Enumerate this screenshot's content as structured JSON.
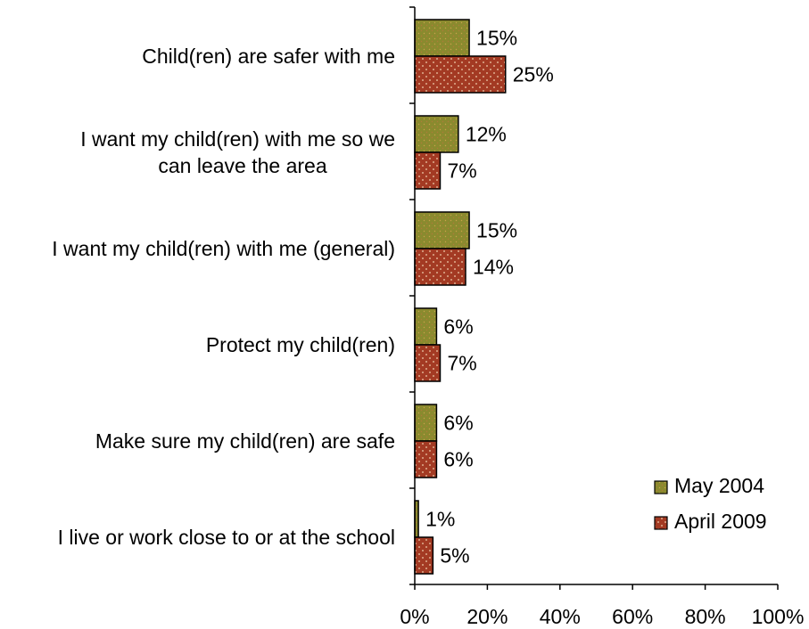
{
  "chart_data": {
    "type": "bar",
    "orientation": "horizontal",
    "categories": [
      "Child(ren) are safer with me",
      "I want my child(ren) with me so we can leave the area",
      "I want my child(ren) with me (general)",
      "Protect my child(ren)",
      "Make sure my child(ren) are safe",
      "I live or work close to or at the school"
    ],
    "series": [
      {
        "name": "May 2004",
        "values": [
          15,
          12,
          15,
          6,
          6,
          1
        ],
        "labels": [
          "15%",
          "12%",
          "15%",
          "6%",
          "6%",
          "1%"
        ],
        "color": "#8a8a2e"
      },
      {
        "name": "April 2009",
        "values": [
          25,
          7,
          14,
          7,
          6,
          5
        ],
        "labels": [
          "25%",
          "7%",
          "14%",
          "7%",
          "6%",
          "5%"
        ],
        "color": "#a33a23"
      }
    ],
    "xlim": [
      0,
      100
    ],
    "xticks": [
      "0%",
      "20%",
      "40%",
      "60%",
      "80%",
      "100%"
    ],
    "legend_position": "bottom-right",
    "grid": false
  }
}
